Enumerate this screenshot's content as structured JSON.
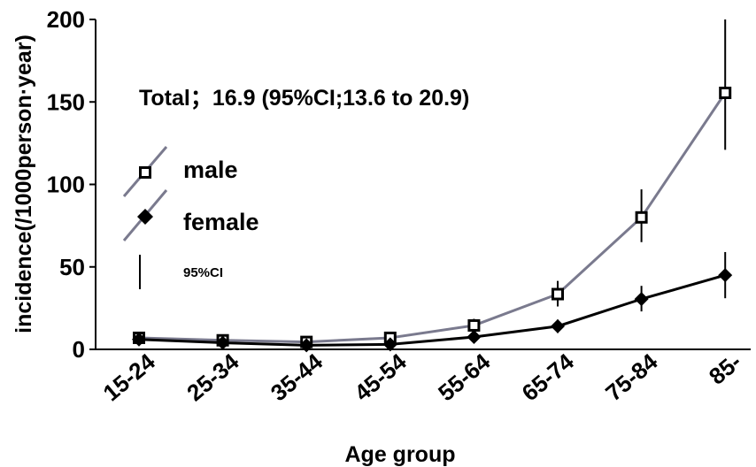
{
  "chart_data": {
    "type": "line",
    "title": "",
    "xlabel": "Age group",
    "ylabel": "incidence(/1000person·year)",
    "ylim": [
      0,
      200
    ],
    "yticks": [
      0,
      50,
      100,
      150,
      200
    ],
    "categories": [
      "15-24",
      "25-34",
      "35-44",
      "45-54",
      "55-64",
      "65-74",
      "75-84",
      "85-"
    ],
    "annotation": "Total；16.9 (95%CI;13.6 to 20.9)",
    "legend_position": "left",
    "ci_label": "95%CI",
    "grid": false,
    "series": [
      {
        "name": "male",
        "marker": "open-square",
        "color": "#7a7a8e",
        "values": [
          7,
          5.5,
          4.5,
          7,
          14.5,
          33.5,
          80,
          155.5
        ],
        "ci_low": [
          4,
          3.5,
          3,
          5,
          11,
          26,
          65,
          121
        ],
        "ci_high": [
          10,
          8,
          6.5,
          9.5,
          18.5,
          41.5,
          97,
          200
        ]
      },
      {
        "name": "female",
        "marker": "filled-diamond",
        "color": "#000000",
        "values": [
          6,
          4,
          2.5,
          3,
          7.5,
          14,
          30.5,
          45
        ],
        "ci_low": [
          4,
          2.5,
          1.5,
          1.5,
          5.5,
          10,
          23,
          31
        ],
        "ci_high": [
          8,
          5.5,
          3.5,
          4.5,
          9.5,
          18,
          38.5,
          59
        ]
      }
    ]
  }
}
